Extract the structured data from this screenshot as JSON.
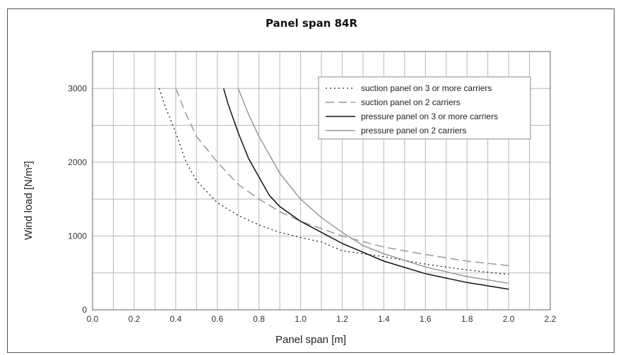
{
  "chart_data": {
    "type": "line",
    "title": "Panel span 84R",
    "xlabel": "Panel span [m]",
    "ylabel": "Wind load [N/m²]",
    "xlim": [
      0.0,
      2.2
    ],
    "ylim": [
      0,
      3500
    ],
    "xticks": [
      "0.0",
      "0.2",
      "0.4",
      "0.6",
      "0.8",
      "1.0",
      "1.2",
      "1.4",
      "1.6",
      "1.8",
      "2.0",
      "2.2"
    ],
    "xtick_values": [
      0.0,
      0.2,
      0.4,
      0.6,
      0.8,
      1.0,
      1.2,
      1.4,
      1.6,
      1.8,
      2.0,
      2.2
    ],
    "yticks": [
      "0",
      "1000",
      "2000",
      "3000"
    ],
    "ytick_values": [
      0,
      1000,
      2000,
      3000
    ],
    "grid": true,
    "legend_position": "top-right",
    "series": [
      {
        "name": "suction panel on 3 or more carriers",
        "style": "dotted",
        "color": "#222222",
        "x": [
          0.32,
          0.35,
          0.4,
          0.45,
          0.5,
          0.6,
          0.7,
          0.8,
          0.9,
          1.0,
          1.1,
          1.2,
          1.4,
          1.6,
          1.8,
          2.0
        ],
        "y": [
          3000,
          2750,
          2400,
          2000,
          1750,
          1450,
          1280,
          1150,
          1050,
          980,
          920,
          800,
          720,
          620,
          540,
          480
        ]
      },
      {
        "name": "suction panel on 2 carriers",
        "style": "dashed",
        "color": "#999999",
        "x": [
          0.4,
          0.45,
          0.5,
          0.6,
          0.7,
          0.8,
          0.9,
          1.0,
          1.1,
          1.2,
          1.4,
          1.6,
          1.8,
          2.0
        ],
        "y": [
          3000,
          2650,
          2350,
          2000,
          1700,
          1500,
          1330,
          1200,
          1100,
          1000,
          850,
          750,
          660,
          600
        ]
      },
      {
        "name": "pressure panel on 3 or more carriers",
        "style": "solid",
        "color": "#111111",
        "x": [
          0.63,
          0.65,
          0.7,
          0.75,
          0.8,
          0.85,
          0.9,
          1.0,
          1.1,
          1.2,
          1.4,
          1.6,
          1.8,
          2.0
        ],
        "y": [
          3000,
          2800,
          2400,
          2050,
          1800,
          1550,
          1400,
          1200,
          1050,
          900,
          660,
          490,
          370,
          280
        ]
      },
      {
        "name": "pressure panel on 2 carriers",
        "style": "solid",
        "color": "#999999",
        "x": [
          0.7,
          0.75,
          0.8,
          0.85,
          0.9,
          1.0,
          1.1,
          1.2,
          1.3,
          1.4,
          1.6,
          1.8,
          2.0
        ],
        "y": [
          3000,
          2650,
          2350,
          2100,
          1850,
          1500,
          1250,
          1050,
          870,
          760,
          580,
          450,
          360
        ]
      }
    ]
  }
}
